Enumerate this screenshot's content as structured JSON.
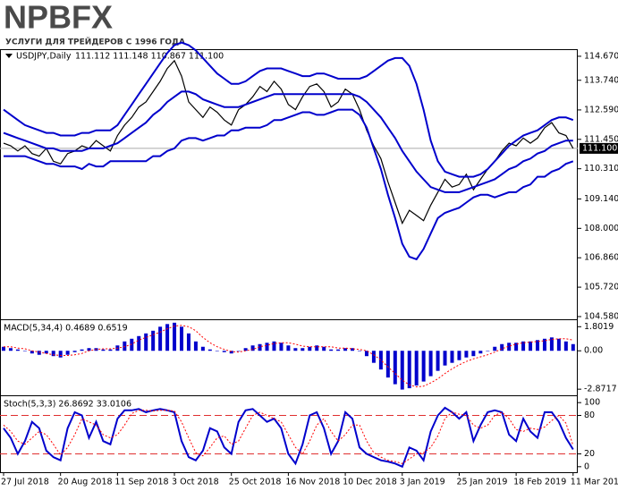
{
  "logo": {
    "brand": "NPBFX",
    "tagline": "УСЛУГИ ДЛЯ ТРЕЙДЕРОВ С 1996 ГОДА"
  },
  "chart_data": [
    {
      "type": "price",
      "title": "USDJPY,Daily",
      "subtitle": "111.112 111.148 110.867 111.100",
      "categories": [
        "27 Jul 2018",
        null,
        null,
        null,
        null,
        null,
        null,
        null,
        "20 Aug 2018",
        null,
        null,
        null,
        null,
        null,
        null,
        null,
        "11 Sep 2018",
        null,
        null,
        null,
        null,
        null,
        null,
        null,
        "3 Oct 2018",
        null,
        null,
        null,
        null,
        null,
        null,
        null,
        "25 Oct 2018",
        null,
        null,
        null,
        null,
        null,
        null,
        null,
        "16 Nov 2018",
        null,
        null,
        null,
        null,
        null,
        null,
        null,
        "10 Dec 2018",
        null,
        null,
        null,
        null,
        null,
        null,
        null,
        "3 Jan 2019",
        null,
        null,
        null,
        null,
        null,
        null,
        null,
        "25 Jan 2019",
        null,
        null,
        null,
        null,
        null,
        null,
        null,
        "18 Feb 2019",
        null,
        null,
        null,
        null,
        null,
        null,
        null,
        "11 Mar 2019"
      ],
      "series": [
        {
          "color": "#000000",
          "values": [
            111.3,
            111.2,
            111.0,
            111.2,
            110.9,
            110.8,
            111.1,
            110.6,
            110.5,
            110.9,
            111.0,
            111.2,
            111.1,
            111.4,
            111.2,
            111.0,
            111.6,
            112.0,
            112.3,
            112.7,
            112.9,
            113.3,
            113.7,
            114.2,
            114.5,
            113.9,
            112.9,
            112.6,
            112.3,
            112.7,
            112.5,
            112.2,
            112.0,
            112.6,
            112.8,
            113.1,
            113.5,
            113.3,
            113.7,
            113.4,
            112.8,
            112.6,
            113.1,
            113.5,
            113.6,
            113.3,
            112.7,
            112.9,
            113.4,
            113.2,
            112.6,
            111.8,
            111.2,
            110.7,
            109.8,
            109.0,
            108.2,
            108.7,
            108.5,
            108.3,
            108.9,
            109.4,
            109.9,
            109.6,
            109.7,
            110.1,
            109.5,
            109.9,
            110.3,
            110.6,
            111.0,
            111.3,
            111.2,
            111.5,
            111.3,
            111.5,
            111.9,
            112.1,
            111.7,
            111.6,
            111.1
          ]
        },
        {
          "color": "#0000cc",
          "values": [
            112.6,
            112.4,
            112.2,
            112.0,
            111.9,
            111.8,
            111.7,
            111.7,
            111.6,
            111.6,
            111.6,
            111.7,
            111.7,
            111.8,
            111.8,
            111.8,
            112.0,
            112.4,
            112.8,
            113.2,
            113.6,
            114.0,
            114.4,
            114.8,
            115.1,
            115.2,
            115.1,
            114.9,
            114.6,
            114.3,
            114.0,
            113.8,
            113.6,
            113.6,
            113.7,
            113.9,
            114.1,
            114.2,
            114.2,
            114.2,
            114.1,
            114.0,
            113.9,
            113.9,
            114.0,
            114.0,
            113.9,
            113.8,
            113.8,
            113.8,
            113.8,
            113.9,
            114.1,
            114.3,
            114.5,
            114.6,
            114.6,
            114.3,
            113.6,
            112.6,
            111.4,
            110.6,
            110.2,
            110.1,
            110.0,
            110.0,
            110.0,
            110.1,
            110.3,
            110.6,
            110.9,
            111.2,
            111.4,
            111.6,
            111.7,
            111.8,
            112.0,
            112.2,
            112.3,
            112.3,
            112.2
          ]
        },
        {
          "color": "#0000cc",
          "values": [
            111.7,
            111.6,
            111.5,
            111.4,
            111.3,
            111.2,
            111.1,
            111.1,
            111.0,
            111.0,
            111.0,
            111.0,
            111.1,
            111.1,
            111.1,
            111.2,
            111.3,
            111.5,
            111.7,
            111.9,
            112.1,
            112.4,
            112.6,
            112.9,
            113.1,
            113.3,
            113.3,
            113.2,
            113.0,
            112.9,
            112.8,
            112.7,
            112.7,
            112.7,
            112.8,
            112.9,
            113.0,
            113.1,
            113.2,
            113.2,
            113.2,
            113.2,
            113.2,
            113.2,
            113.2,
            113.2,
            113.2,
            113.2,
            113.2,
            113.2,
            113.1,
            112.9,
            112.6,
            112.3,
            111.9,
            111.5,
            111.0,
            110.6,
            110.2,
            109.9,
            109.6,
            109.5,
            109.4,
            109.4,
            109.4,
            109.5,
            109.6,
            109.7,
            109.8,
            109.9,
            110.1,
            110.3,
            110.4,
            110.6,
            110.7,
            110.9,
            111.0,
            111.2,
            111.3,
            111.4,
            111.4
          ]
        },
        {
          "color": "#0000cc",
          "values": [
            110.8,
            110.8,
            110.8,
            110.8,
            110.7,
            110.6,
            110.5,
            110.5,
            110.4,
            110.4,
            110.4,
            110.3,
            110.5,
            110.4,
            110.4,
            110.6,
            110.6,
            110.6,
            110.6,
            110.6,
            110.6,
            110.8,
            110.8,
            111.0,
            111.1,
            111.4,
            111.5,
            111.5,
            111.4,
            111.5,
            111.6,
            111.6,
            111.8,
            111.8,
            111.9,
            111.9,
            111.9,
            112.0,
            112.2,
            112.2,
            112.3,
            112.4,
            112.5,
            112.5,
            112.4,
            112.4,
            112.5,
            112.6,
            112.6,
            112.6,
            112.4,
            111.9,
            111.1,
            110.3,
            109.3,
            108.4,
            107.4,
            106.9,
            106.8,
            107.2,
            107.8,
            108.4,
            108.6,
            108.7,
            108.8,
            109.0,
            109.2,
            109.3,
            109.3,
            109.2,
            109.3,
            109.4,
            109.4,
            109.6,
            109.7,
            110.0,
            110.0,
            110.2,
            110.3,
            110.5,
            110.6
          ]
        }
      ],
      "last_price": {
        "value": 111.1,
        "label": "111.100"
      },
      "ylim": [
        104.51,
        114.91
      ],
      "yticks": [
        {
          "value": 114.67,
          "label": "114.670"
        },
        {
          "value": 113.74,
          "label": "113.740"
        },
        {
          "value": 112.59,
          "label": "112.590"
        },
        {
          "value": 111.45,
          "label": "111.450"
        },
        {
          "value": 110.31,
          "label": "110.310"
        },
        {
          "value": 109.14,
          "label": "109.140"
        },
        {
          "value": 108,
          "label": "108.000"
        },
        {
          "value": 106.86,
          "label": "106.860"
        },
        {
          "value": 105.72,
          "label": "105.720"
        },
        {
          "value": 104.58,
          "label": "104.580"
        }
      ]
    },
    {
      "type": "macd",
      "title": "MACD(5,34,4) 0.4689 0.6519",
      "series": [
        {
          "color": "#0000cc",
          "style": "bar",
          "values": [
            0.3,
            0.2,
            0.1,
            0.0,
            -0.2,
            -0.3,
            -0.2,
            -0.4,
            -0.5,
            -0.3,
            -0.1,
            0.1,
            0.2,
            0.2,
            0.1,
            0.1,
            0.4,
            0.7,
            0.9,
            1.1,
            1.3,
            1.5,
            1.8,
            2.0,
            2.1,
            1.8,
            1.3,
            0.7,
            0.3,
            0.1,
            0.0,
            -0.1,
            -0.2,
            0.0,
            0.2,
            0.4,
            0.5,
            0.6,
            0.7,
            0.6,
            0.4,
            0.2,
            0.2,
            0.3,
            0.4,
            0.3,
            0.1,
            0.1,
            0.2,
            0.2,
            0.0,
            -0.4,
            -0.9,
            -1.4,
            -2.0,
            -2.5,
            -2.9,
            -2.8,
            -2.6,
            -2.3,
            -1.9,
            -1.5,
            -1.1,
            -0.9,
            -0.7,
            -0.5,
            -0.4,
            -0.2,
            0.0,
            0.3,
            0.5,
            0.6,
            0.6,
            0.7,
            0.7,
            0.8,
            0.9,
            1.0,
            0.9,
            0.7,
            0.5
          ]
        },
        {
          "color": "#ff0000",
          "style": "dotted",
          "values": [
            0.3,
            0.3,
            0.2,
            0.15,
            0.0,
            -0.1,
            -0.2,
            -0.3,
            -0.35,
            -0.35,
            -0.3,
            -0.2,
            0.0,
            0.1,
            0.15,
            0.15,
            0.2,
            0.3,
            0.5,
            0.8,
            1.0,
            1.2,
            1.4,
            1.65,
            1.85,
            1.9,
            1.8,
            1.5,
            1.0,
            0.6,
            0.3,
            0.1,
            -0.05,
            -0.1,
            0.0,
            0.1,
            0.3,
            0.4,
            0.55,
            0.6,
            0.6,
            0.5,
            0.35,
            0.3,
            0.3,
            0.3,
            0.3,
            0.2,
            0.2,
            0.15,
            0.1,
            0.0,
            -0.3,
            -0.7,
            -1.2,
            -1.7,
            -2.2,
            -2.55,
            -2.7,
            -2.65,
            -2.4,
            -2.1,
            -1.7,
            -1.35,
            -1.05,
            -0.8,
            -0.6,
            -0.45,
            -0.3,
            -0.1,
            0.15,
            0.35,
            0.5,
            0.6,
            0.65,
            0.7,
            0.75,
            0.85,
            0.9,
            0.9,
            0.8
          ]
        }
      ],
      "ylim": [
        -3.33,
        2.29
      ],
      "yticks": [
        1.8019,
        {
          "value": 0,
          "label": "0.00"
        },
        -2.8717
      ]
    },
    {
      "type": "stoch",
      "title": "Stoch(5,3,3) 26.8692 33.0106",
      "series": [
        {
          "color": "#0000cc",
          "style": "solid",
          "values": [
            60,
            45,
            20,
            40,
            70,
            60,
            25,
            15,
            10,
            60,
            85,
            80,
            45,
            70,
            40,
            35,
            75,
            88,
            88,
            90,
            85,
            88,
            90,
            88,
            85,
            40,
            15,
            10,
            25,
            60,
            55,
            30,
            20,
            70,
            88,
            90,
            80,
            70,
            75,
            60,
            20,
            5,
            35,
            80,
            85,
            60,
            20,
            40,
            85,
            75,
            30,
            20,
            15,
            10,
            8,
            5,
            0,
            30,
            25,
            10,
            55,
            80,
            92,
            85,
            75,
            85,
            40,
            65,
            85,
            88,
            85,
            50,
            40,
            75,
            55,
            45,
            85,
            85,
            70,
            45,
            27
          ]
        },
        {
          "color": "#ff0000",
          "style": "dotted",
          "values": [
            65,
            55,
            40,
            35,
            45,
            55,
            50,
            35,
            18,
            30,
            50,
            75,
            70,
            65,
            50,
            45,
            50,
            65,
            83,
            88,
            88,
            87,
            88,
            88,
            87,
            70,
            45,
            22,
            17,
            30,
            45,
            48,
            35,
            40,
            60,
            80,
            85,
            80,
            75,
            70,
            50,
            30,
            20,
            40,
            65,
            75,
            55,
            40,
            50,
            65,
            65,
            40,
            22,
            15,
            10,
            8,
            5,
            12,
            20,
            22,
            30,
            48,
            75,
            85,
            82,
            80,
            65,
            60,
            65,
            80,
            85,
            75,
            58,
            55,
            60,
            58,
            62,
            72,
            80,
            68,
            33
          ]
        }
      ],
      "levels": [
        20,
        80
      ],
      "ylim": [
        -8.6,
        110
      ],
      "yticks": [
        100,
        80,
        20,
        0
      ]
    }
  ]
}
